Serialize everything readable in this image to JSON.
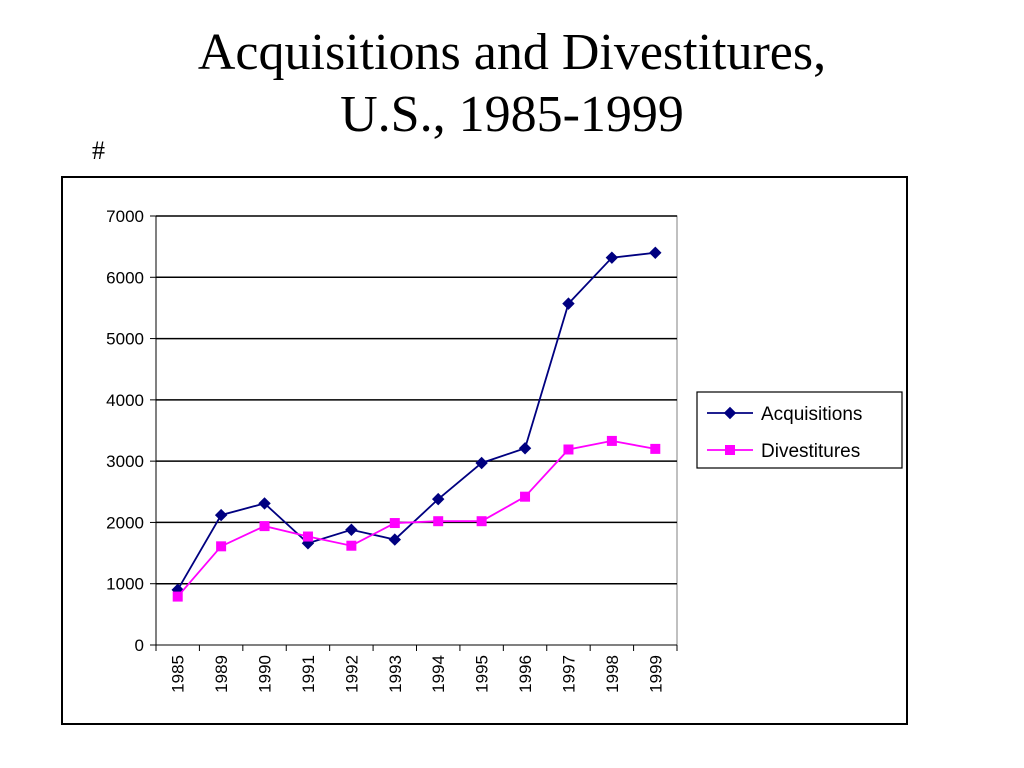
{
  "slide": {
    "title_line1": "Acquisitions and Divestitures,",
    "title_line2": "U.S., 1985-1999",
    "unit_label": "#"
  },
  "chart_data": {
    "type": "line",
    "categories": [
      "1985",
      "1989",
      "1990",
      "1991",
      "1992",
      "1993",
      "1994",
      "1995",
      "1996",
      "1997",
      "1998",
      "1999"
    ],
    "series": [
      {
        "name": "Acquisitions",
        "color": "#000080",
        "marker": "diamond",
        "values": [
          900,
          2120,
          2310,
          1660,
          1880,
          1720,
          2380,
          2970,
          3210,
          5570,
          6320,
          6400
        ]
      },
      {
        "name": "Divestitures",
        "color": "#FF00FF",
        "marker": "square",
        "values": [
          790,
          1610,
          1940,
          1770,
          1620,
          1990,
          2020,
          2020,
          2420,
          3190,
          3330,
          3200
        ]
      }
    ],
    "ylim": [
      0,
      7000
    ],
    "yticks": [
      0,
      1000,
      2000,
      3000,
      4000,
      5000,
      6000,
      7000
    ],
    "xlabel": "",
    "ylabel": "#",
    "grid": true,
    "legend_position": "right"
  }
}
